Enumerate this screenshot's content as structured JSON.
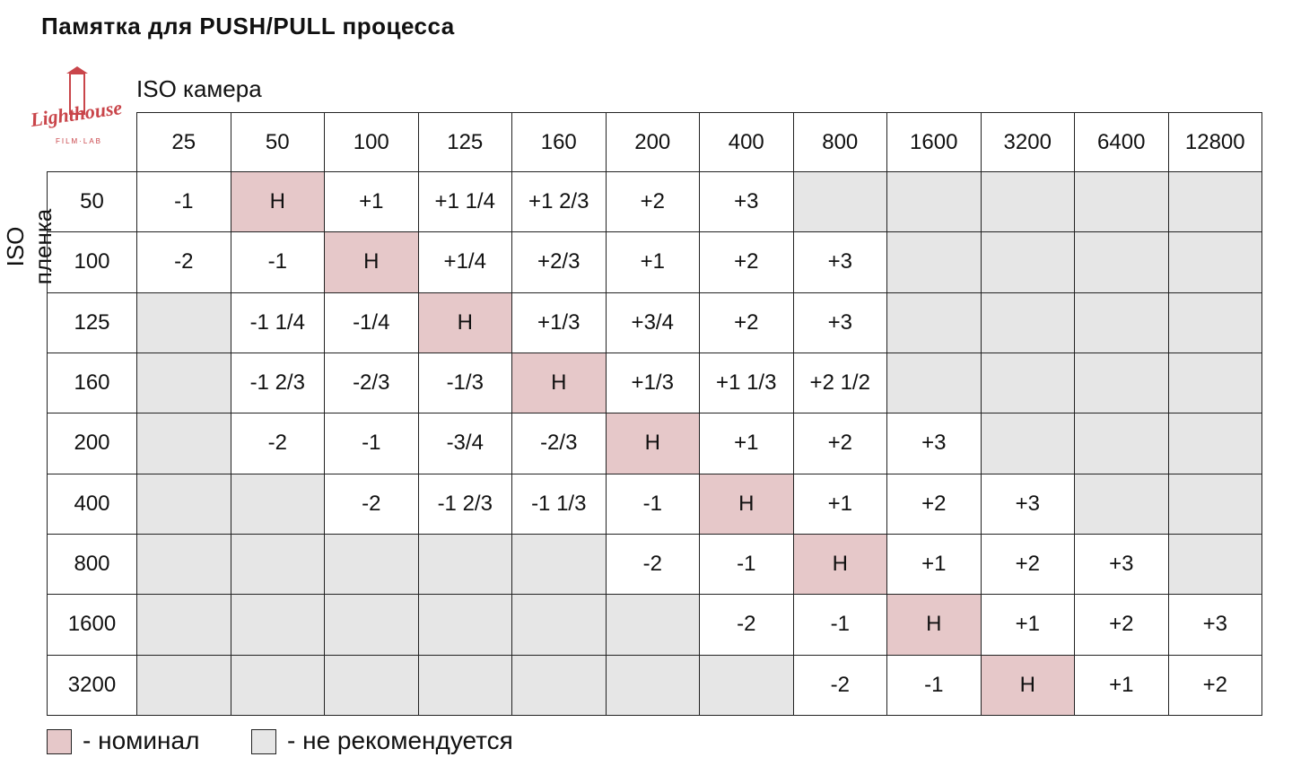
{
  "header": {
    "title": "Памятка для PUSH/PULL процесса"
  },
  "logo": {
    "name": "Lighthouse",
    "sub": "FILM·LAB"
  },
  "table": {
    "column_title": "ISO камера",
    "row_title": "ISO пленка",
    "columns": [
      25,
      50,
      100,
      125,
      160,
      200,
      400,
      800,
      1600,
      3200,
      6400,
      12800
    ],
    "rows": [
      {
        "iso": 50,
        "cells": [
          "-1",
          "Н",
          "+1",
          "+1 1/4",
          "+1 2/3",
          "+2",
          "+3",
          null,
          null,
          null,
          null,
          null
        ]
      },
      {
        "iso": 100,
        "cells": [
          "-2",
          "-1",
          "Н",
          "+1/4",
          "+2/3",
          "+1",
          "+2",
          "+3",
          null,
          null,
          null,
          null
        ]
      },
      {
        "iso": 125,
        "cells": [
          null,
          "-1 1/4",
          "-1/4",
          "Н",
          "+1/3",
          "+3/4",
          "+2",
          "+3",
          null,
          null,
          null,
          null
        ]
      },
      {
        "iso": 160,
        "cells": [
          null,
          "-1 2/3",
          "-2/3",
          "-1/3",
          "Н",
          "+1/3",
          "+1 1/3",
          "+2 1/2",
          null,
          null,
          null,
          null
        ]
      },
      {
        "iso": 200,
        "cells": [
          null,
          "-2",
          "-1",
          "-3/4",
          "-2/3",
          "Н",
          "+1",
          "+2",
          "+3",
          null,
          null,
          null
        ]
      },
      {
        "iso": 400,
        "cells": [
          null,
          null,
          "-2",
          "-1 2/3",
          "-1 1/3",
          "-1",
          "Н",
          "+1",
          "+2",
          "+3",
          null,
          null
        ]
      },
      {
        "iso": 800,
        "cells": [
          null,
          null,
          null,
          null,
          null,
          "-2",
          "-1",
          "Н",
          "+1",
          "+2",
          "+3",
          null
        ]
      },
      {
        "iso": 1600,
        "cells": [
          null,
          null,
          null,
          null,
          null,
          null,
          "-2",
          "-1",
          "Н",
          "+1",
          "+2",
          "+3"
        ]
      },
      {
        "iso": 3200,
        "cells": [
          null,
          null,
          null,
          null,
          null,
          null,
          null,
          "-2",
          "-1",
          "Н",
          "+1",
          "+2"
        ]
      }
    ]
  },
  "legend": [
    {
      "label": "- номинал",
      "color": "#e6c8c9"
    },
    {
      "label": "- не рекомендуется",
      "color": "#e6e6e6"
    }
  ]
}
